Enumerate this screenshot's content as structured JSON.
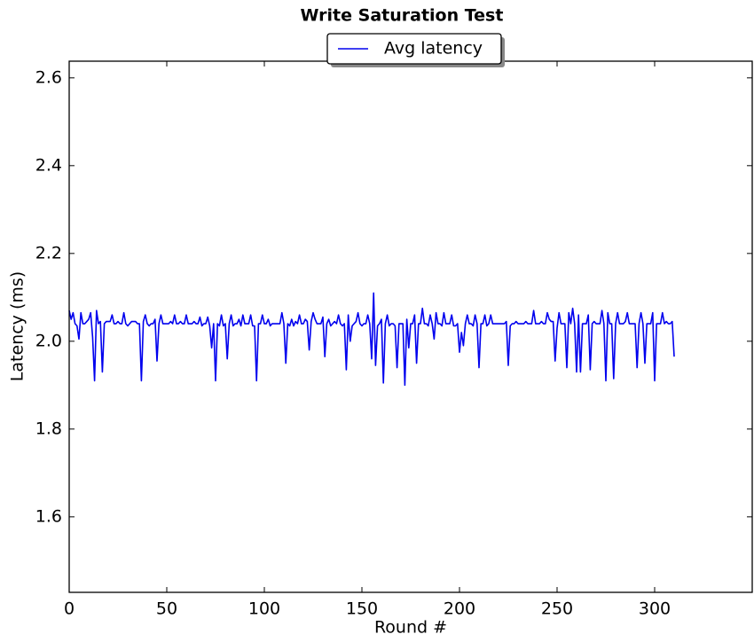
{
  "chart_data": {
    "type": "line",
    "title": "Write Saturation Test",
    "x_label": "Round #",
    "y_label": "Latency (ms)",
    "xlim": [
      0,
      350
    ],
    "ylim": [
      1.428,
      2.638
    ],
    "xticks": [
      0,
      50,
      100,
      150,
      200,
      250,
      300
    ],
    "yticks": [
      1.6,
      1.8,
      {
        "value": 2.0,
        "label": "2.0"
      },
      2.2,
      2.4,
      2.6
    ],
    "legend": "upper center",
    "x": [
      0,
      1,
      2,
      3,
      4,
      5,
      6,
      7,
      8,
      9,
      10,
      11,
      12,
      13,
      14,
      15,
      16,
      17,
      18,
      19,
      20,
      21,
      22,
      23,
      24,
      25,
      26,
      27,
      28,
      29,
      30,
      31,
      32,
      33,
      34,
      35,
      36,
      37,
      38,
      39,
      40,
      41,
      42,
      43,
      44,
      45,
      46,
      47,
      48,
      49,
      50,
      51,
      52,
      53,
      54,
      55,
      56,
      57,
      58,
      59,
      60,
      61,
      62,
      63,
      64,
      65,
      66,
      67,
      68,
      69,
      70,
      71,
      72,
      73,
      74,
      75,
      76,
      77,
      78,
      79,
      80,
      81,
      82,
      83,
      84,
      85,
      86,
      87,
      88,
      89,
      90,
      91,
      92,
      93,
      94,
      95,
      96,
      97,
      98,
      99,
      100,
      101,
      102,
      103,
      104,
      105,
      106,
      107,
      108,
      109,
      110,
      111,
      112,
      113,
      114,
      115,
      116,
      117,
      118,
      119,
      120,
      121,
      122,
      123,
      124,
      125,
      126,
      127,
      128,
      129,
      130,
      131,
      132,
      133,
      134,
      135,
      136,
      137,
      138,
      139,
      140,
      141,
      142,
      143,
      144,
      145,
      146,
      147,
      148,
      149,
      150,
      151,
      152,
      153,
      154,
      155,
      156,
      157,
      158,
      159,
      160,
      161,
      162,
      163,
      164,
      165,
      166,
      167,
      168,
      169,
      170,
      171,
      172,
      173,
      174,
      175,
      176,
      177,
      178,
      179,
      180,
      181,
      182,
      183,
      184,
      185,
      186,
      187,
      188,
      189,
      190,
      191,
      192,
      193,
      194,
      195,
      196,
      197,
      198,
      199,
      200,
      201,
      202,
      203,
      204,
      205,
      206,
      207,
      208,
      209,
      210,
      211,
      212,
      213,
      214,
      215,
      216,
      217,
      218,
      219,
      220,
      221,
      222,
      223,
      224,
      225,
      226,
      227,
      228,
      229,
      230,
      231,
      232,
      233,
      234,
      235,
      236,
      237,
      238,
      239,
      240,
      241,
      242,
      243,
      244,
      245,
      246,
      247,
      248,
      249,
      250,
      251,
      252,
      253,
      254,
      255,
      256,
      257,
      258,
      259,
      260,
      261,
      262,
      263,
      264,
      265,
      266,
      267,
      268,
      269,
      270,
      271,
      272,
      273,
      274,
      275,
      276,
      277,
      278,
      279,
      280,
      281,
      282,
      283,
      284,
      285,
      286,
      287,
      288,
      289,
      290,
      291,
      292,
      293,
      294,
      295,
      296,
      297,
      298,
      299,
      300,
      301,
      302,
      303,
      304,
      305,
      306,
      307,
      308,
      309,
      310
    ],
    "series": [
      {
        "name": "Avg latency",
        "color": "#0000ee",
        "values": [
          2.07,
          2.05,
          2.065,
          2.04,
          2.035,
          2.005,
          2.065,
          2.04,
          2.04,
          2.045,
          2.05,
          2.065,
          2.01,
          1.91,
          2.07,
          2.04,
          2.045,
          1.93,
          2.04,
          2.045,
          2.045,
          2.045,
          2.06,
          2.04,
          2.04,
          2.045,
          2.04,
          2.04,
          2.065,
          2.04,
          2.035,
          2.04,
          2.045,
          2.045,
          2.045,
          2.04,
          2.04,
          1.91,
          2.045,
          2.06,
          2.04,
          2.035,
          2.04,
          2.04,
          2.05,
          1.955,
          2.04,
          2.06,
          2.04,
          2.04,
          2.04,
          2.04,
          2.045,
          2.04,
          2.06,
          2.04,
          2.04,
          2.045,
          2.04,
          2.04,
          2.06,
          2.04,
          2.04,
          2.04,
          2.045,
          2.04,
          2.04,
          2.055,
          2.035,
          2.04,
          2.04,
          2.055,
          2.035,
          1.985,
          2.04,
          1.91,
          2.04,
          2.035,
          2.06,
          2.035,
          2.04,
          1.96,
          2.04,
          2.06,
          2.035,
          2.04,
          2.04,
          2.05,
          2.035,
          2.06,
          2.04,
          2.04,
          2.04,
          2.06,
          2.035,
          2.035,
          1.91,
          2.04,
          2.04,
          2.06,
          2.04,
          2.04,
          2.05,
          2.035,
          2.04,
          2.04,
          2.04,
          2.04,
          2.04,
          2.065,
          2.04,
          1.95,
          2.04,
          2.035,
          2.05,
          2.035,
          2.045,
          2.04,
          2.06,
          2.04,
          2.04,
          2.05,
          2.045,
          1.98,
          2.045,
          2.065,
          2.05,
          2.04,
          2.04,
          2.04,
          2.055,
          1.965,
          2.04,
          2.05,
          2.035,
          2.04,
          2.045,
          2.04,
          2.06,
          2.04,
          2.035,
          2.04,
          1.935,
          2.06,
          2.0,
          2.035,
          2.04,
          2.045,
          2.065,
          2.04,
          2.035,
          2.04,
          2.04,
          2.06,
          2.04,
          1.96,
          2.11,
          1.945,
          2.035,
          2.04,
          2.05,
          1.905,
          2.04,
          2.06,
          2.035,
          2.04,
          2.04,
          2.035,
          1.94,
          2.04,
          2.04,
          2.04,
          1.9,
          2.05,
          1.985,
          2.04,
          2.04,
          2.06,
          1.95,
          2.04,
          2.04,
          2.075,
          2.04,
          2.04,
          2.035,
          2.06,
          2.04,
          2.005,
          2.065,
          2.04,
          2.04,
          2.035,
          2.065,
          2.04,
          2.04,
          2.04,
          2.06,
          2.035,
          2.035,
          2.04,
          1.975,
          2.02,
          1.99,
          2.04,
          2.06,
          2.04,
          2.04,
          2.035,
          2.06,
          2.04,
          1.94,
          2.04,
          2.04,
          2.06,
          2.035,
          2.04,
          2.06,
          2.04,
          2.04,
          2.04,
          2.04,
          2.04,
          2.04,
          2.04,
          2.045,
          1.945,
          2.035,
          2.04,
          2.04,
          2.045,
          2.04,
          2.04,
          2.04,
          2.04,
          2.045,
          2.04,
          2.04,
          2.04,
          2.07,
          2.04,
          2.04,
          2.04,
          2.045,
          2.04,
          2.04,
          2.065,
          2.05,
          2.045,
          2.045,
          1.955,
          2.03,
          2.065,
          2.04,
          2.04,
          2.04,
          1.94,
          2.065,
          2.04,
          2.075,
          2.04,
          1.93,
          2.06,
          1.93,
          2.04,
          2.04,
          2.04,
          2.06,
          1.935,
          2.04,
          2.045,
          2.04,
          2.04,
          2.04,
          2.07,
          2.04,
          1.91,
          2.065,
          2.04,
          2.04,
          1.915,
          2.04,
          2.065,
          2.04,
          2.04,
          2.04,
          2.045,
          2.065,
          2.04,
          2.04,
          2.04,
          2.04,
          1.94,
          2.04,
          2.065,
          2.04,
          1.95,
          2.04,
          2.04,
          2.04,
          2.065,
          1.91,
          2.04,
          2.04,
          2.04,
          2.065,
          2.04,
          2.045,
          2.04,
          2.04,
          2.045,
          1.965
        ]
      }
    ]
  }
}
